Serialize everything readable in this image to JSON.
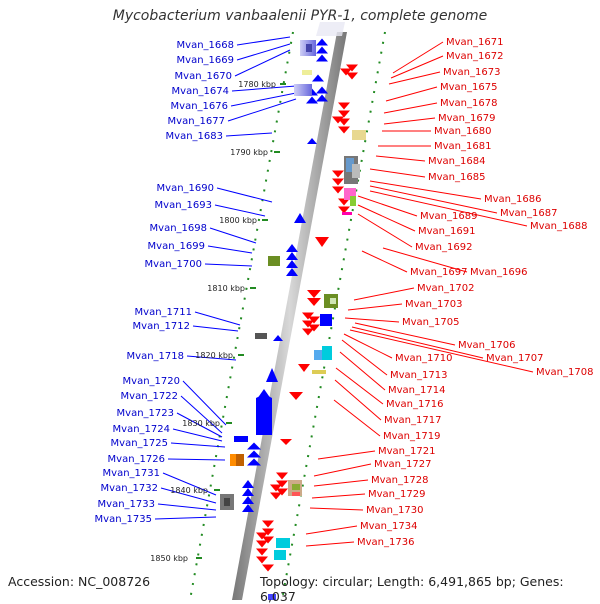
{
  "title": "Mycobacterium vanbaalenii PYR-1, complete genome",
  "footer": {
    "accession": "Accession: NC_008726",
    "topology": "Topology: circular; Length: 6,491,865 bp; Genes: 6,037"
  },
  "scale_labels": [
    "1780 kbp",
    "1790 kbp",
    "1800 kbp",
    "1810 kbp",
    "1820 kbp",
    "1830 kbp",
    "1840 kbp",
    "1850 kbp"
  ],
  "left_genes": [
    "Mvan_1668",
    "Mvan_1669",
    "Mvan_1670",
    "Mvan_1674",
    "Mvan_1676",
    "Mvan_1677",
    "Mvan_1683",
    "Mvan_1690",
    "Mvan_1693",
    "Mvan_1698",
    "Mvan_1699",
    "Mvan_1700",
    "Mvan_1711",
    "Mvan_1712",
    "Mvan_1718",
    "Mvan_1720",
    "Mvan_1722",
    "Mvan_1723",
    "Mvan_1724",
    "Mvan_1725",
    "Mvan_1726",
    "Mvan_1731",
    "Mvan_1732",
    "Mvan_1733",
    "Mvan_1735"
  ],
  "right_genes": [
    "Mvan_1671",
    "Mvan_1672",
    "Mvan_1673",
    "Mvan_1675",
    "Mvan_1678",
    "Mvan_1679",
    "Mvan_1680",
    "Mvan_1681",
    "Mvan_1684",
    "Mvan_1685",
    "Mvan_1686",
    "Mvan_1687",
    "Mvan_1688",
    "Mvan_1689",
    "Mvan_1691",
    "Mvan_1692",
    "Mvan_1697",
    "Mvan_1696",
    "Mvan_1702",
    "Mvan_1703",
    "Mvan_1705",
    "Mvan_1706",
    "Mvan_1707",
    "Mvan_1708",
    "Mvan_1710",
    "Mvan_1713",
    "Mvan_1714",
    "Mvan_1716",
    "Mvan_1717",
    "Mvan_1719",
    "Mvan_1721",
    "Mvan_1727",
    "Mvan_1728",
    "Mvan_1729",
    "Mvan_1730",
    "Mvan_1734",
    "Mvan_1736"
  ],
  "colors": {
    "forward_strand": "#0000ff",
    "reverse_strand": "#ff0000",
    "backbone": "#9a9a9a",
    "tick": "#228b22"
  }
}
